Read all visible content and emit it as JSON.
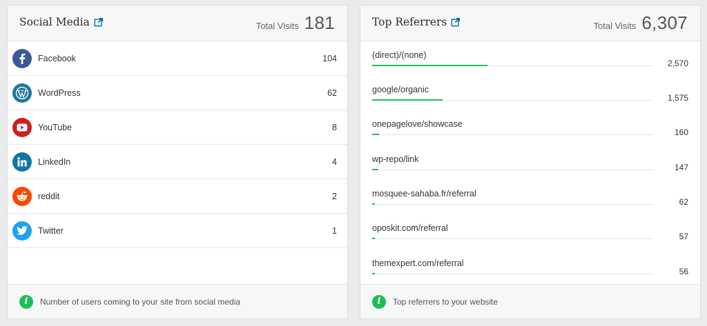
{
  "social": {
    "title": "Social Media",
    "total_label": "Total Visits",
    "total_value": "181",
    "items": [
      {
        "name": "Facebook",
        "count": "104",
        "color": "#3b5998",
        "icon": "facebook-icon"
      },
      {
        "name": "WordPress",
        "count": "62",
        "color": "#21759b",
        "icon": "wordpress-icon"
      },
      {
        "name": "YouTube",
        "count": "8",
        "color": "#cd201f",
        "icon": "youtube-icon"
      },
      {
        "name": "LinkedIn",
        "count": "4",
        "color": "#0e76a8",
        "icon": "linkedin-icon"
      },
      {
        "name": "reddit",
        "count": "2",
        "color": "#ff4500",
        "icon": "reddit-icon"
      },
      {
        "name": "Twitter",
        "count": "1",
        "color": "#1da1f2",
        "icon": "twitter-icon"
      }
    ],
    "footer": "Number of users coming to your site from social media"
  },
  "referrers": {
    "title": "Top Referrers",
    "total_label": "Total Visits",
    "total_value": "6,307",
    "items": [
      {
        "name": "(direct)/(none)",
        "count": "2,570",
        "share": 0.41
      },
      {
        "name": "google/organic",
        "count": "1,575",
        "share": 0.25
      },
      {
        "name": "onepagelove/showcase",
        "count": "160",
        "share": 0.025
      },
      {
        "name": "wp-repo/link",
        "count": "147",
        "share": 0.023
      },
      {
        "name": "mosquee-sahaba.fr/referral",
        "count": "62",
        "share": 0.01
      },
      {
        "name": "oposkit.com/referral",
        "count": "57",
        "share": 0.009
      },
      {
        "name": "themexpert.com/referral",
        "count": "56",
        "share": 0.009
      }
    ],
    "footer": "Top referrers to your website"
  },
  "colors": {
    "accent_green": "#1cbf57",
    "link_blue": "#0073aa"
  }
}
